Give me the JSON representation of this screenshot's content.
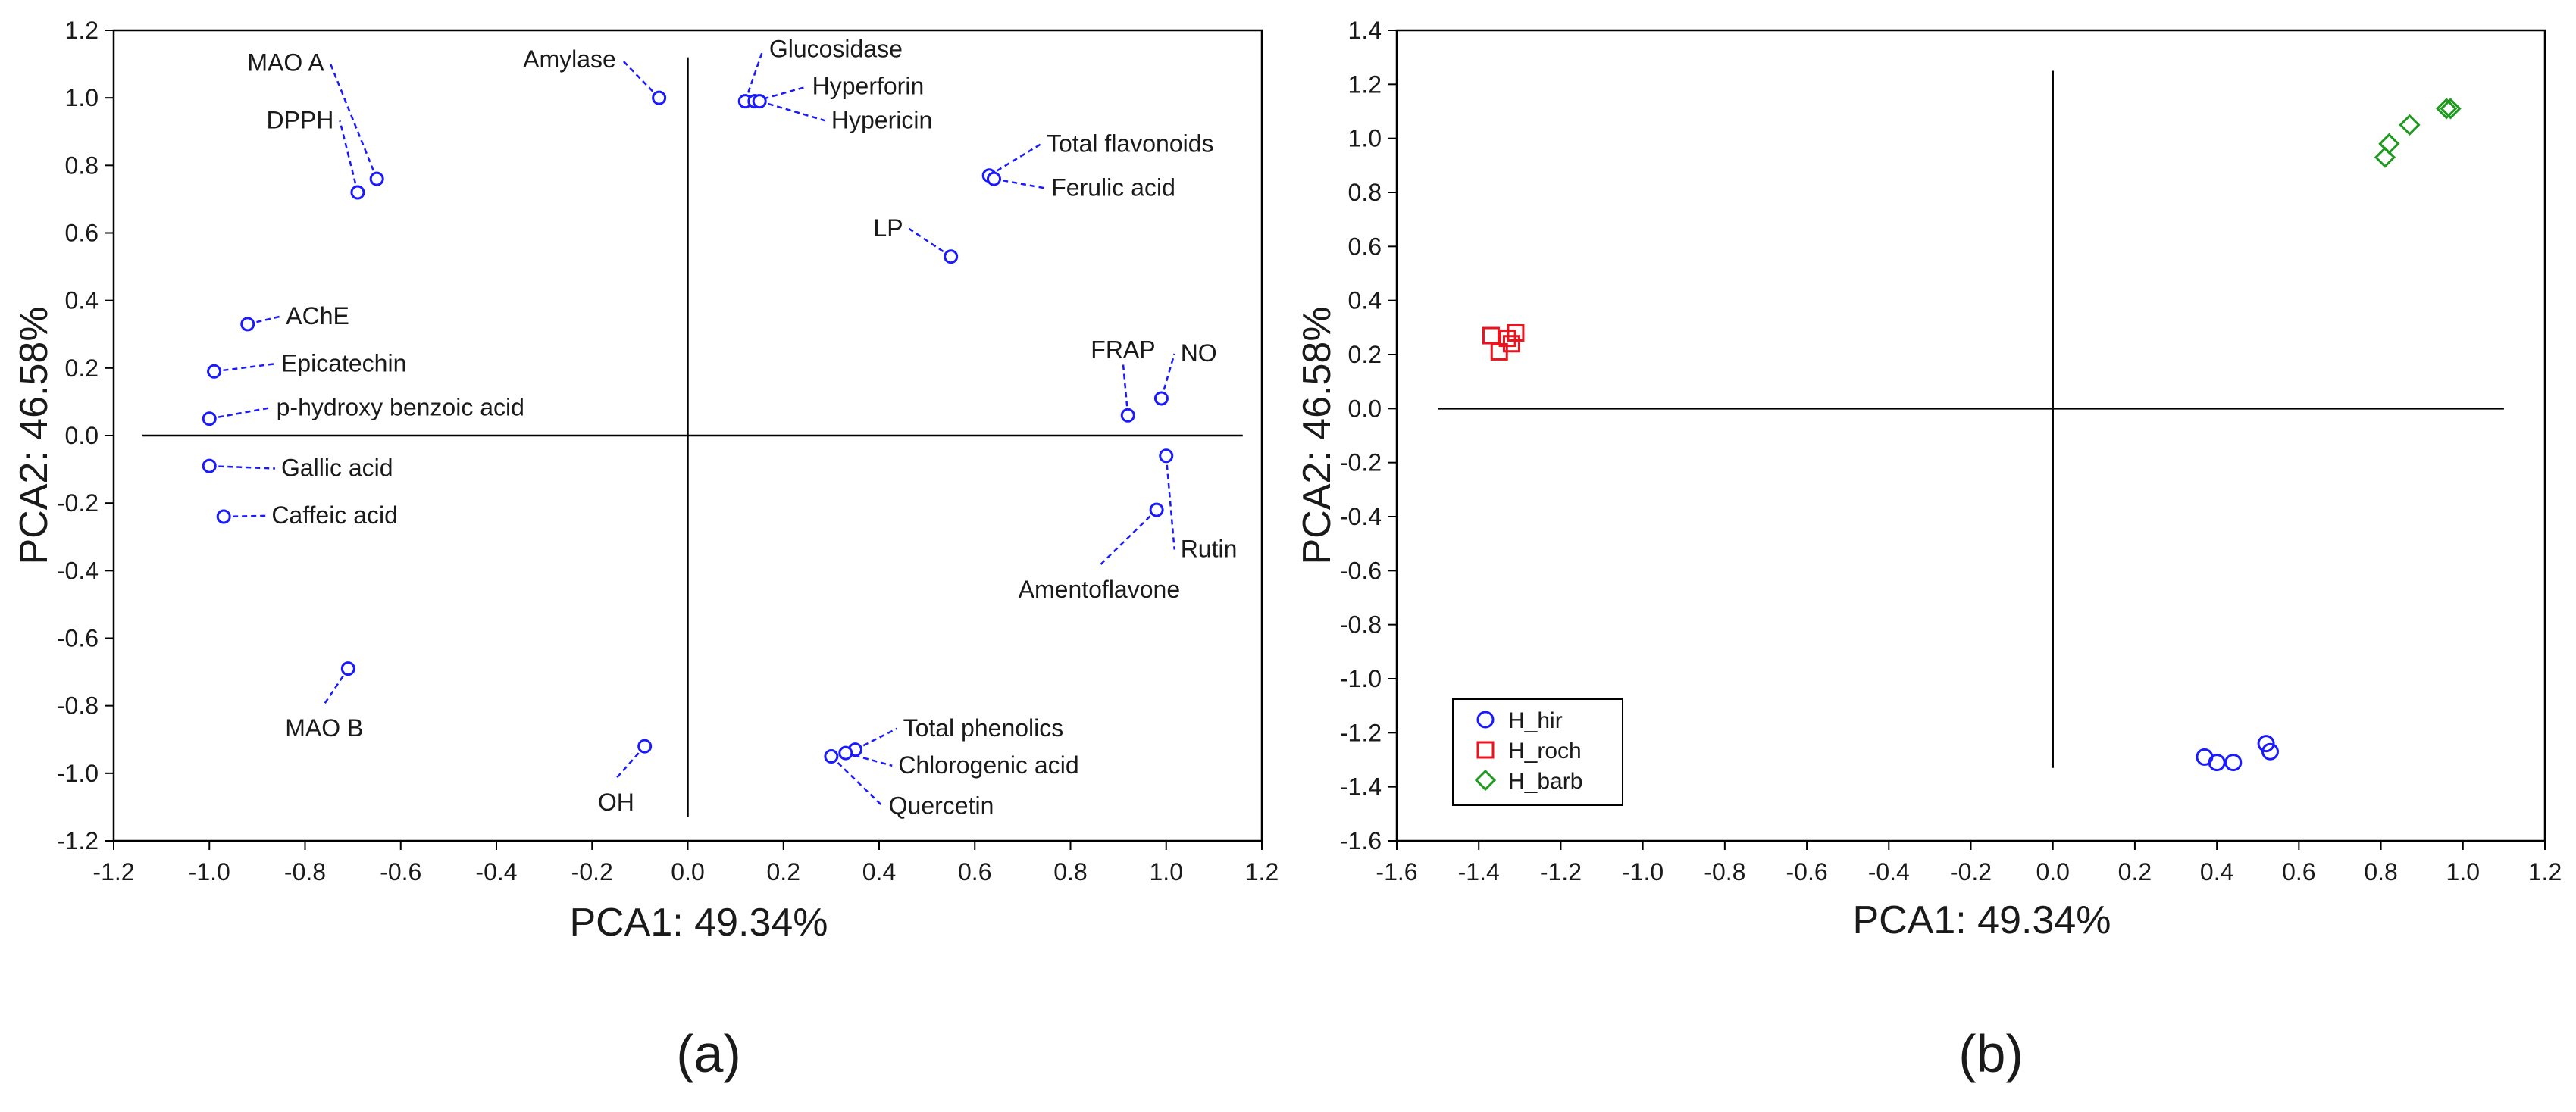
{
  "chart_data": [
    {
      "type": "scatter",
      "panel_label": "(a)",
      "xlabel": "PCA1: 49.34%",
      "ylabel": "PCA2: 46.58%",
      "xlim": [
        -1.2,
        1.2
      ],
      "ylim": [
        -1.2,
        1.2
      ],
      "x_ticks": [
        -1.2,
        -1.0,
        -0.8,
        -0.6,
        -0.4,
        -0.2,
        0.0,
        0.2,
        0.4,
        0.6,
        0.8,
        1.0,
        1.2
      ],
      "y_ticks": [
        -1.2,
        -1.0,
        -0.8,
        -0.6,
        -0.4,
        -0.2,
        0.0,
        0.2,
        0.4,
        0.6,
        0.8,
        1.0,
        1.2
      ],
      "x_tick_labels": [
        "-1.2",
        "-1.0",
        "-0.8",
        "-0.6",
        "-0.4",
        "-0.2",
        "0.0",
        "0.2",
        "0.4",
        "0.6",
        "0.8",
        "1.0",
        "1.2"
      ],
      "y_tick_labels": [
        "-1.2",
        "-1.0",
        "-0.8",
        "-0.6",
        "-0.4",
        "-0.2",
        "0.0",
        "0.2",
        "0.4",
        "0.6",
        "0.8",
        "1.0",
        "1.2"
      ],
      "grid": false,
      "point_color": "#1a1aff",
      "points": [
        {
          "label": "MAO A",
          "x": -0.65,
          "y": 0.76,
          "lx": -0.76,
          "ly": 1.08,
          "align": "end"
        },
        {
          "label": "DPPH",
          "x": -0.69,
          "y": 0.72,
          "lx": -0.74,
          "ly": 0.91,
          "align": "end"
        },
        {
          "label": "Amylase",
          "x": -0.06,
          "y": 1.0,
          "lx": -0.15,
          "ly": 1.09,
          "align": "end"
        },
        {
          "label": "Glucosidase",
          "x": 0.12,
          "y": 0.99,
          "lx": 0.17,
          "ly": 1.12,
          "align": "start"
        },
        {
          "label": "Hyperforin",
          "x": 0.14,
          "y": 0.99,
          "lx": 0.26,
          "ly": 1.01,
          "align": "start"
        },
        {
          "label": "Hypericin",
          "x": 0.15,
          "y": 0.99,
          "lx": 0.3,
          "ly": 0.91,
          "align": "start"
        },
        {
          "label": "Total flavonoids",
          "x": 0.63,
          "y": 0.77,
          "lx": 0.75,
          "ly": 0.84,
          "align": "start"
        },
        {
          "label": "Ferulic acid",
          "x": 0.64,
          "y": 0.76,
          "lx": 0.76,
          "ly": 0.71,
          "align": "start"
        },
        {
          "label": "LP",
          "x": 0.55,
          "y": 0.53,
          "lx": 0.45,
          "ly": 0.59,
          "align": "end"
        },
        {
          "label": "AChE",
          "x": -0.92,
          "y": 0.33,
          "lx": -0.84,
          "ly": 0.33,
          "align": "start"
        },
        {
          "label": "Epicatechin",
          "x": -0.99,
          "y": 0.19,
          "lx": -0.85,
          "ly": 0.19,
          "align": "start"
        },
        {
          "label": "p-hydroxy benzoic acid",
          "x": -1.0,
          "y": 0.05,
          "lx": -0.86,
          "ly": 0.06,
          "align": "start"
        },
        {
          "label": "Gallic acid",
          "x": -1.0,
          "y": -0.09,
          "lx": -0.85,
          "ly": -0.12,
          "align": "start"
        },
        {
          "label": "Caffeic acid",
          "x": -0.97,
          "y": -0.24,
          "lx": -0.87,
          "ly": -0.26,
          "align": "start"
        },
        {
          "label": "FRAP",
          "x": 0.92,
          "y": 0.06,
          "lx": 0.91,
          "ly": 0.23,
          "align": "middle"
        },
        {
          "label": "NO",
          "x": 0.99,
          "y": 0.11,
          "lx": 1.03,
          "ly": 0.22,
          "align": "start"
        },
        {
          "label": "Rutin",
          "x": 1.0,
          "y": -0.06,
          "lx": 1.03,
          "ly": -0.36,
          "align": "start"
        },
        {
          "label": "Amentoflavone",
          "x": 0.98,
          "y": -0.22,
          "lx": 0.86,
          "ly": -0.48,
          "align": "middle"
        },
        {
          "label": "MAO B",
          "x": -0.71,
          "y": -0.69,
          "lx": -0.76,
          "ly": -0.89,
          "align": "middle"
        },
        {
          "label": "OH",
          "x": -0.09,
          "y": -0.92,
          "lx": -0.15,
          "ly": -1.11,
          "align": "middle"
        },
        {
          "label": "Total phenolics",
          "x": 0.35,
          "y": -0.93,
          "lx": 0.45,
          "ly": -0.89,
          "align": "start"
        },
        {
          "label": "Chlorogenic acid",
          "x": 0.33,
          "y": -0.94,
          "lx": 0.44,
          "ly": -1.0,
          "align": "start"
        },
        {
          "label": "Quercetin",
          "x": 0.3,
          "y": -0.95,
          "lx": 0.42,
          "ly": -1.12,
          "align": "start"
        }
      ]
    },
    {
      "type": "scatter",
      "panel_label": "(b)",
      "xlabel": "PCA1: 49.34%",
      "ylabel": "PCA2: 46.58%",
      "xlim": [
        -1.6,
        1.2
      ],
      "ylim": [
        -1.6,
        1.4
      ],
      "x_ticks": [
        -1.6,
        -1.4,
        -1.2,
        -1.0,
        -0.8,
        -0.6,
        -0.4,
        -0.2,
        0.0,
        0.2,
        0.4,
        0.6,
        0.8,
        1.0,
        1.2
      ],
      "y_ticks": [
        -1.6,
        -1.4,
        -1.2,
        -1.0,
        -0.8,
        -0.6,
        -0.4,
        -0.2,
        0.0,
        0.2,
        0.4,
        0.6,
        0.8,
        1.0,
        1.2,
        1.4
      ],
      "x_tick_labels": [
        "-1.6",
        "-1.4",
        "-1.2",
        "-1.0",
        "-0.8",
        "-0.6",
        "-0.4",
        "-0.2",
        "0.0",
        "0.2",
        "0.4",
        "0.6",
        "0.8",
        "1.0",
        "1.2"
      ],
      "y_tick_labels": [
        "-1.6",
        "-1.4",
        "-1.2",
        "-1.0",
        "-0.8",
        "-0.6",
        "-0.4",
        "-0.2",
        "0.0",
        "0.2",
        "0.4",
        "0.6",
        "0.8",
        "1.0",
        "1.2",
        "1.4"
      ],
      "grid": false,
      "legend_position": "bottom-left",
      "series": [
        {
          "name": "H_hir",
          "marker": "circle",
          "color": "#1a1aff",
          "points": [
            [
              0.37,
              -1.29
            ],
            [
              0.4,
              -1.31
            ],
            [
              0.44,
              -1.31
            ],
            [
              0.52,
              -1.24
            ],
            [
              0.53,
              -1.27
            ]
          ]
        },
        {
          "name": "H_roch",
          "marker": "square",
          "color": "#e8141e",
          "points": [
            [
              -1.37,
              0.27
            ],
            [
              -1.35,
              0.21
            ],
            [
              -1.33,
              0.26
            ],
            [
              -1.32,
              0.24
            ],
            [
              -1.31,
              0.28
            ]
          ]
        },
        {
          "name": "H_barb",
          "marker": "diamond",
          "color": "#1f9a1f",
          "points": [
            [
              0.81,
              0.93
            ],
            [
              0.82,
              0.98
            ],
            [
              0.87,
              1.05
            ],
            [
              0.96,
              1.11
            ],
            [
              0.97,
              1.11
            ]
          ]
        }
      ]
    }
  ]
}
